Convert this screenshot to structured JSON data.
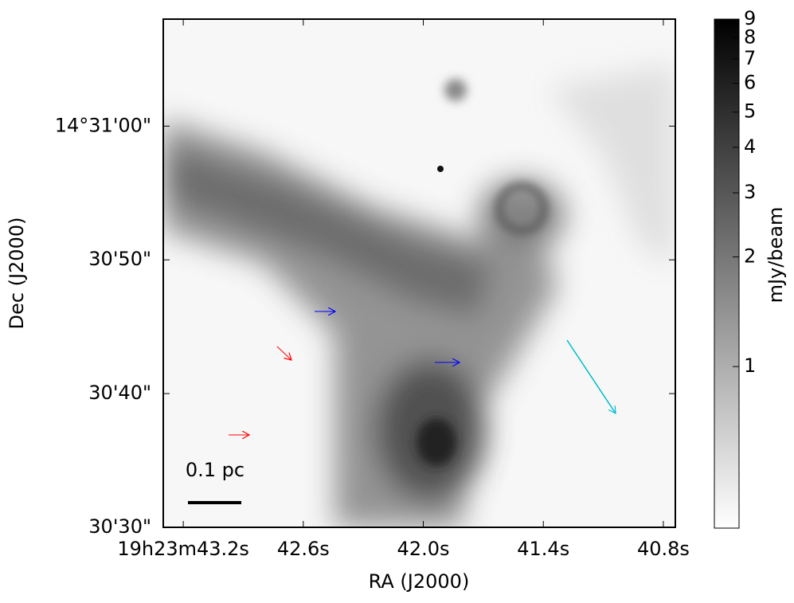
{
  "chart_data": {
    "type": "image",
    "xlabel": "RA (J2000)",
    "ylabel": "Dec (J2000)",
    "colorbar_label": "mJy/beam",
    "xlim": [
      43.3,
      40.74
    ],
    "xticks": [
      {
        "value": 43.2,
        "label": "19h23m43.2s"
      },
      {
        "value": 42.6,
        "label": "42.6s"
      },
      {
        "value": 42.0,
        "label": "42.0s"
      },
      {
        "value": 41.4,
        "label": "41.4s"
      },
      {
        "value": 40.8,
        "label": "40.8s"
      }
    ],
    "ylim": [
      30,
      68
    ],
    "yticks": [
      {
        "value": 30,
        "label": "30'30\""
      },
      {
        "value": 40,
        "label": "30'40\""
      },
      {
        "value": 50,
        "label": "30'50\""
      },
      {
        "value": 60,
        "label": "14°31'00\""
      }
    ],
    "clim": [
      0.36,
      9
    ],
    "color_scale": "log",
    "cticks": [
      1,
      2,
      3,
      4,
      5,
      6,
      7,
      8,
      9
    ],
    "scale_bar_label": "0.1 pc"
  }
}
